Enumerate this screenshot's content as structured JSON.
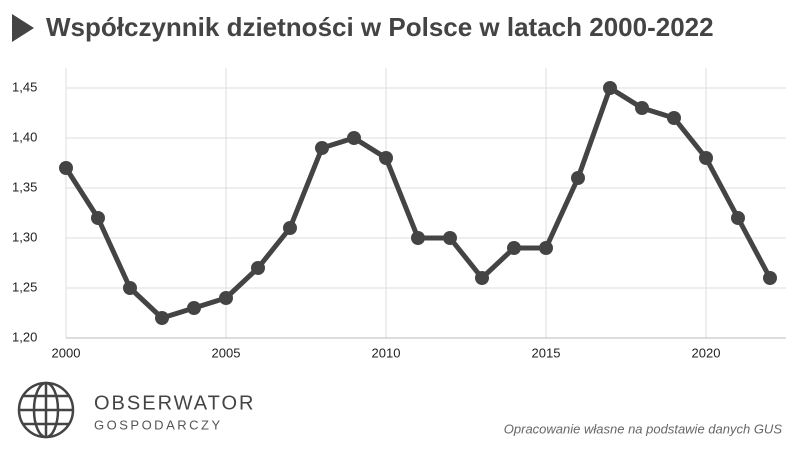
{
  "chart_data": {
    "type": "line",
    "title": "Współczynnik dzietności w Polsce w latach 2000-2022",
    "x": [
      2000,
      2001,
      2002,
      2003,
      2004,
      2005,
      2006,
      2007,
      2008,
      2009,
      2010,
      2011,
      2012,
      2013,
      2014,
      2015,
      2016,
      2017,
      2018,
      2019,
      2020,
      2021,
      2022
    ],
    "values": [
      1.37,
      1.32,
      1.25,
      1.22,
      1.23,
      1.24,
      1.27,
      1.31,
      1.39,
      1.4,
      1.38,
      1.3,
      1.3,
      1.26,
      1.29,
      1.29,
      1.36,
      1.45,
      1.43,
      1.42,
      1.38,
      1.32,
      1.26
    ],
    "color": "#444444",
    "xlim": [
      2000,
      2022.5
    ],
    "xticks": [
      2000,
      2005,
      2010,
      2015,
      2020
    ],
    "ylim": [
      1.2,
      1.47
    ],
    "yticks": [
      {
        "value": 1.2,
        "label": "1,20"
      },
      {
        "value": 1.25,
        "label": "1,25"
      },
      {
        "value": 1.3,
        "label": "1,30"
      },
      {
        "value": 1.35,
        "label": "1,35"
      },
      {
        "value": 1.4,
        "label": "1,40"
      },
      {
        "value": 1.45,
        "label": "1,45"
      }
    ],
    "grid": true,
    "source": "Opracowanie własne na podstawie danych GUS"
  },
  "logo": {
    "name": "OBSERWATOR",
    "subtitle": "GOSPODARCZY"
  }
}
